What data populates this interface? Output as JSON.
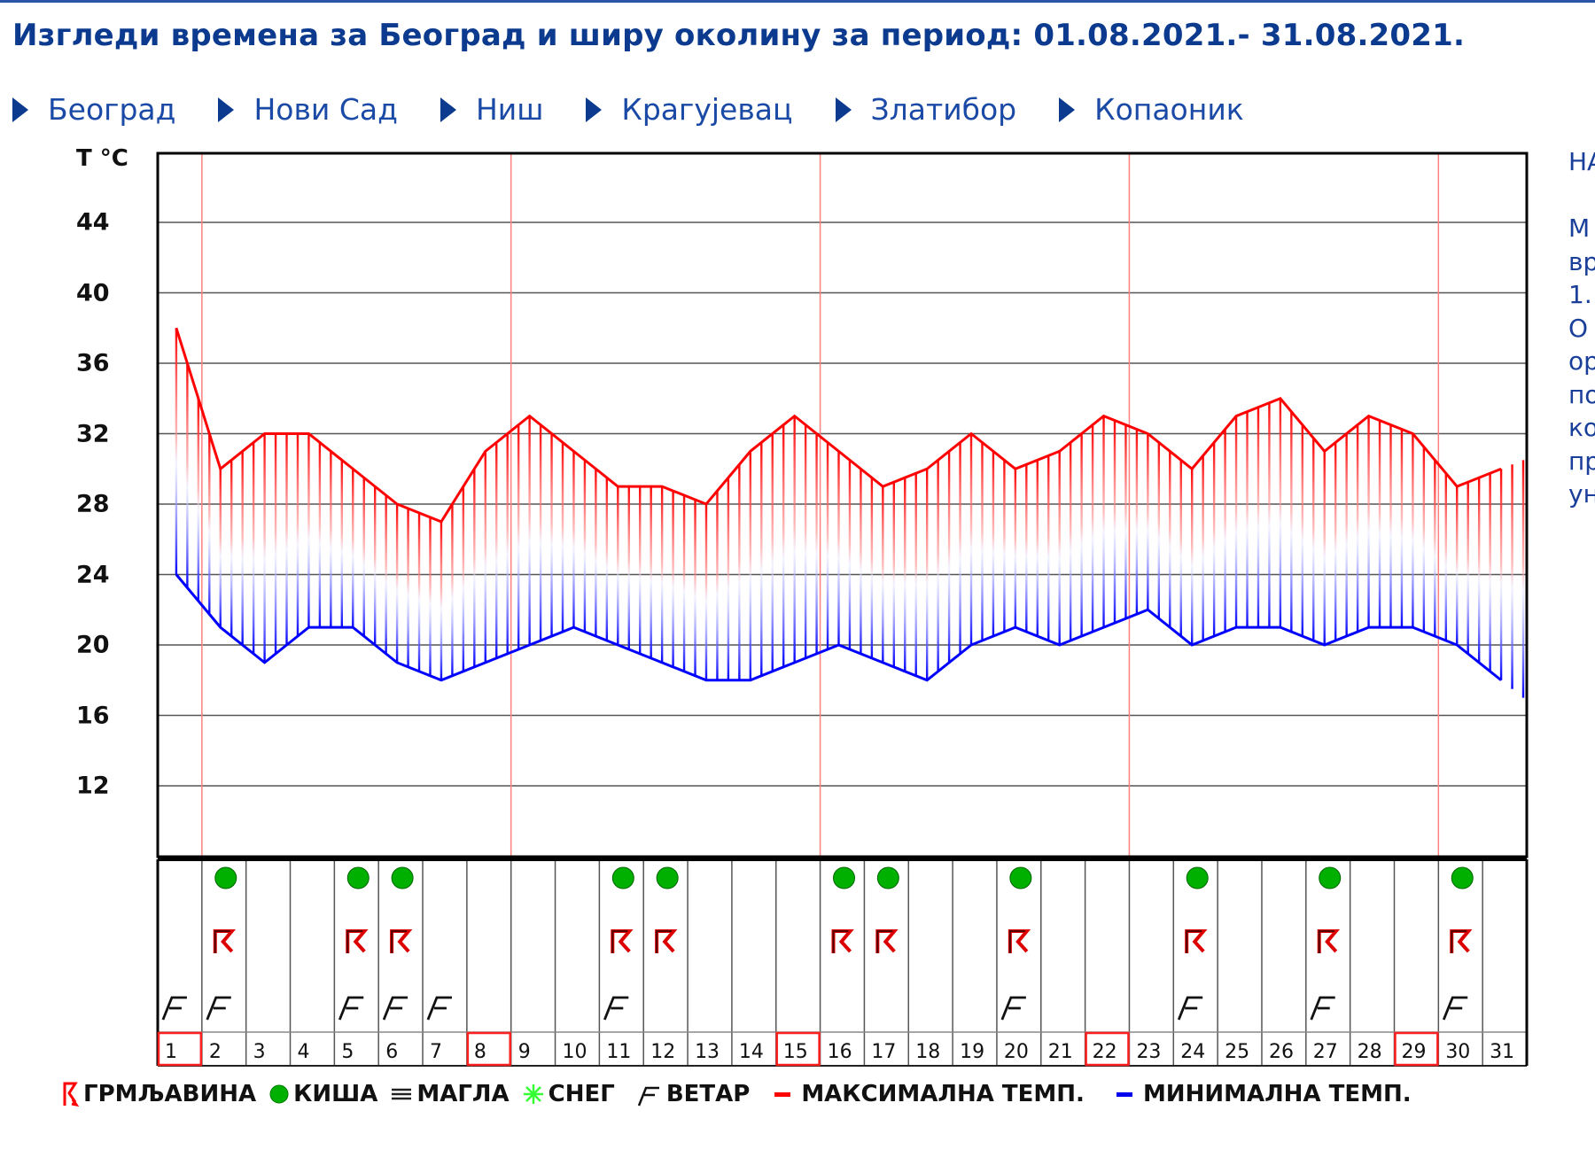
{
  "header": {
    "title": "Изгледи времена за Београд и ширу околину за период: 01.08.2021.- 31.08.2021."
  },
  "nav": {
    "items": [
      {
        "label": "Београд",
        "icon": "chevron-right-icon"
      },
      {
        "label": "Нови Сад",
        "icon": "chevron-right-icon"
      },
      {
        "label": "Ниш",
        "icon": "chevron-right-icon"
      },
      {
        "label": "Крагујевац",
        "icon": "chevron-right-icon"
      },
      {
        "label": "Златибор",
        "icon": "chevron-right-icon"
      },
      {
        "label": "Копаоник",
        "icon": "chevron-right-icon"
      }
    ]
  },
  "side_text": {
    "lines": [
      "НА",
      "",
      "М",
      "вр",
      "1.",
      "О",
      "ор",
      "по",
      "ко",
      "пр",
      "ун"
    ]
  },
  "colors": {
    "max_temp": "#ff0000",
    "min_temp": "#0000ff",
    "rain": "#00aa00",
    "snow": "#33ff33",
    "week_marker": "#ff3333",
    "title": "#0b3a8e",
    "nav": "#1a4aa6"
  },
  "legend": {
    "items": [
      {
        "label": "ГРМЉАВИНА",
        "icon": "thunderstorm-icon"
      },
      {
        "label": "КИША",
        "icon": "rain-icon"
      },
      {
        "label": "МАГЛА",
        "icon": "fog-icon"
      },
      {
        "label": "СНЕГ",
        "icon": "snow-icon"
      },
      {
        "label": "ВЕТАР",
        "icon": "wind-icon"
      },
      {
        "label": "МАКСИМАЛНА ТЕМП.",
        "icon": "max-temp-icon"
      },
      {
        "label": "МИНИМАЛНА ТЕМП.",
        "icon": "min-temp-icon"
      }
    ]
  },
  "chart_data": {
    "type": "line",
    "title": "",
    "xlabel": "",
    "ylabel": "T °C",
    "ylim": [
      8,
      48
    ],
    "yticks": [
      12,
      16,
      20,
      24,
      28,
      32,
      36,
      40,
      44
    ],
    "grid": true,
    "categories": [
      "1",
      "2",
      "3",
      "4",
      "5",
      "6",
      "7",
      "8",
      "9",
      "10",
      "11",
      "12",
      "13",
      "14",
      "15",
      "16",
      "17",
      "18",
      "19",
      "20",
      "21",
      "22",
      "23",
      "24",
      "25",
      "26",
      "27",
      "28",
      "29",
      "30",
      "31"
    ],
    "series": [
      {
        "name": "МАКСИМАЛНА ТЕМП.",
        "color": "#ff0000",
        "values": [
          38,
          30,
          32,
          32,
          30,
          28,
          27,
          31,
          33,
          31,
          29,
          29,
          28,
          31,
          33,
          31,
          29,
          30,
          32,
          30,
          31,
          33,
          32,
          30,
          33,
          34,
          31,
          33,
          32,
          29,
          30
        ]
      },
      {
        "name": "МИНИМАЛНА ТЕМП.",
        "color": "#0000ff",
        "values": [
          24,
          21,
          19,
          21,
          21,
          19,
          18,
          19,
          20,
          21,
          20,
          19,
          18,
          18,
          19,
          20,
          19,
          18,
          20,
          21,
          20,
          21,
          22,
          20,
          21,
          21,
          20,
          21,
          21,
          20,
          18
        ]
      }
    ],
    "highlighted_days": [
      1,
      8,
      15,
      22,
      29
    ],
    "phenomena": {
      "rain": [
        2,
        5,
        6,
        11,
        12,
        16,
        17,
        20,
        24,
        27,
        30
      ],
      "thunderstorm": [
        2,
        5,
        6,
        11,
        12,
        16,
        17,
        20,
        24,
        27,
        30
      ],
      "wind": [
        1,
        2,
        5,
        6,
        7,
        11,
        20,
        24,
        27,
        30
      ],
      "fog": [],
      "snow": []
    },
    "legend_position": "bottom"
  }
}
